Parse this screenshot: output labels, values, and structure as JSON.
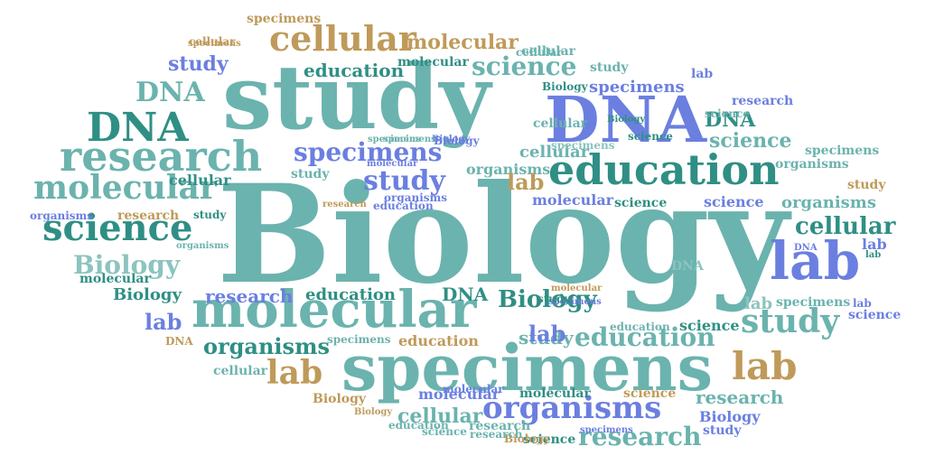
{
  "colors": {
    "teal": "#6bb3ae",
    "dark_teal": "#2f8f84",
    "blue": "#6b7fe0",
    "gold": "#bf9a5a",
    "light_teal": "#8cc4bf"
  },
  "words": [
    {
      "text": "Biology",
      "color": "teal"
    },
    {
      "text": "study",
      "color": "teal"
    },
    {
      "text": "DNA",
      "color": "blue"
    },
    {
      "text": "specimens",
      "color": "teal"
    },
    {
      "text": "molecular",
      "color": "teal"
    },
    {
      "text": "lab",
      "color": "blue"
    },
    {
      "text": "education",
      "color": "dark_teal"
    },
    {
      "text": "research",
      "color": "teal"
    },
    {
      "text": "DNA",
      "color": "dark_teal"
    },
    {
      "text": "cellular",
      "color": "gold"
    },
    {
      "text": "science",
      "color": "dark_teal"
    },
    {
      "text": "molecular",
      "color": "teal"
    },
    {
      "text": "organisms",
      "color": "blue"
    },
    {
      "text": "lab",
      "color": "gold"
    },
    {
      "text": "study",
      "color": "teal"
    },
    {
      "text": "science",
      "color": "teal"
    },
    {
      "text": "specimens",
      "color": "blue"
    },
    {
      "text": "study",
      "color": "blue"
    },
    {
      "text": "Biology",
      "color": "light_teal"
    },
    {
      "text": "DNA",
      "color": "teal"
    },
    {
      "text": "lab",
      "color": "gold"
    },
    {
      "text": "education",
      "color": "teal"
    },
    {
      "text": "research",
      "color": "teal"
    },
    {
      "text": "cellular",
      "color": "dark_teal"
    },
    {
      "text": "organisms",
      "color": "dark_teal"
    },
    {
      "text": "Biology",
      "color": "dark_teal"
    },
    {
      "text": "molecular",
      "color": "gold"
    },
    {
      "text": "specimens",
      "color": "blue"
    },
    {
      "text": "science",
      "color": "teal"
    },
    {
      "text": "lab",
      "color": "blue"
    },
    {
      "text": "education",
      "color": "dark_teal"
    },
    {
      "text": "study",
      "color": "blue"
    },
    {
      "text": "cellular",
      "color": "teal"
    },
    {
      "text": "DNA",
      "color": "dark_teal"
    },
    {
      "text": "research",
      "color": "teal"
    },
    {
      "text": "research",
      "color": "blue"
    },
    {
      "text": "education",
      "color": "dark_teal"
    },
    {
      "text": "DNA",
      "color": "dark_teal"
    },
    {
      "text": "Biology",
      "color": "dark_teal"
    },
    {
      "text": "education",
      "color": "gold"
    },
    {
      "text": "science",
      "color": "dark_teal"
    },
    {
      "text": "study",
      "color": "teal"
    },
    {
      "text": "organisms",
      "color": "teal"
    },
    {
      "text": "cellular",
      "color": "teal"
    },
    {
      "text": "molecular",
      "color": "blue"
    },
    {
      "text": "science",
      "color": "blue"
    },
    {
      "text": "organisms",
      "color": "teal"
    },
    {
      "text": "cellular",
      "color": "dark_teal"
    },
    {
      "text": "lab",
      "color": "blue"
    },
    {
      "text": "lab",
      "color": "blue"
    },
    {
      "text": "lab",
      "color": "gold"
    },
    {
      "text": "research",
      "color": "gold"
    },
    {
      "text": "molecular",
      "color": "blue"
    },
    {
      "text": "molecular",
      "color": "dark_teal"
    },
    {
      "text": "science",
      "color": "gold"
    },
    {
      "text": "research",
      "color": "teal"
    },
    {
      "text": "Biology",
      "color": "blue"
    },
    {
      "text": "study",
      "color": "teal"
    },
    {
      "text": "study",
      "color": "gold"
    },
    {
      "text": "organisms",
      "color": "teal"
    },
    {
      "text": "specimens",
      "color": "teal"
    },
    {
      "text": "specimens",
      "color": "teal"
    },
    {
      "text": "molecular",
      "color": "dark_teal"
    },
    {
      "text": "Biology",
      "color": "dark_teal"
    },
    {
      "text": "cellular",
      "color": "teal"
    },
    {
      "text": "DNA",
      "color": "light_teal"
    },
    {
      "text": "specimens",
      "color": "teal"
    },
    {
      "text": "lab",
      "color": "light_teal"
    },
    {
      "text": "specimens",
      "color": "light_teal"
    },
    {
      "text": "science",
      "color": "blue"
    },
    {
      "text": "research",
      "color": "blue"
    },
    {
      "text": "lab",
      "color": "blue"
    },
    {
      "text": "study",
      "color": "teal"
    },
    {
      "text": "science",
      "color": "dark_teal"
    },
    {
      "text": "DNA",
      "color": "gold"
    },
    {
      "text": "specimens",
      "color": "teal"
    },
    {
      "text": "cellular",
      "color": "teal"
    },
    {
      "text": "organisms",
      "color": "blue"
    },
    {
      "text": "Biology",
      "color": "gold"
    },
    {
      "text": "Biology",
      "color": "gold"
    },
    {
      "text": "science",
      "color": "teal"
    },
    {
      "text": "research",
      "color": "gold"
    },
    {
      "text": "science",
      "color": "dark_teal"
    },
    {
      "text": "Biology",
      "color": "blue"
    },
    {
      "text": "study",
      "color": "blue"
    },
    {
      "text": "cellular",
      "color": "gold"
    },
    {
      "text": "specimens",
      "color": "gold"
    },
    {
      "text": "molecular",
      "color": "gold"
    },
    {
      "text": "cellular",
      "color": "teal"
    },
    {
      "text": "study",
      "color": "dark_teal"
    },
    {
      "text": "Biology",
      "color": "blue"
    },
    {
      "text": "specimens",
      "color": "teal"
    },
    {
      "text": "education",
      "color": "blue"
    },
    {
      "text": "specimens",
      "color": "blue"
    },
    {
      "text": "Biology",
      "color": "dark_teal"
    },
    {
      "text": "molecular",
      "color": "blue"
    },
    {
      "text": "organisms",
      "color": "teal"
    },
    {
      "text": "organisms",
      "color": "blue"
    },
    {
      "text": "DNA",
      "color": "blue"
    },
    {
      "text": "lab",
      "color": "dark_teal"
    },
    {
      "text": "specimens",
      "color": "gold"
    },
    {
      "text": "education",
      "color": "teal"
    },
    {
      "text": "specimens",
      "color": "blue"
    },
    {
      "text": "science",
      "color": "teal"
    },
    {
      "text": "cellular",
      "color": "teal"
    },
    {
      "text": "molecular",
      "color": "dark_teal"
    },
    {
      "text": "science",
      "color": "dark_teal"
    },
    {
      "text": "Biology",
      "color": "gold"
    },
    {
      "text": "lab",
      "color": "blue"
    },
    {
      "text": "education",
      "color": "teal"
    },
    {
      "text": "study",
      "color": "dark_teal"
    },
    {
      "text": "molecular",
      "color": "blue"
    },
    {
      "text": "research",
      "color": "teal"
    }
  ]
}
